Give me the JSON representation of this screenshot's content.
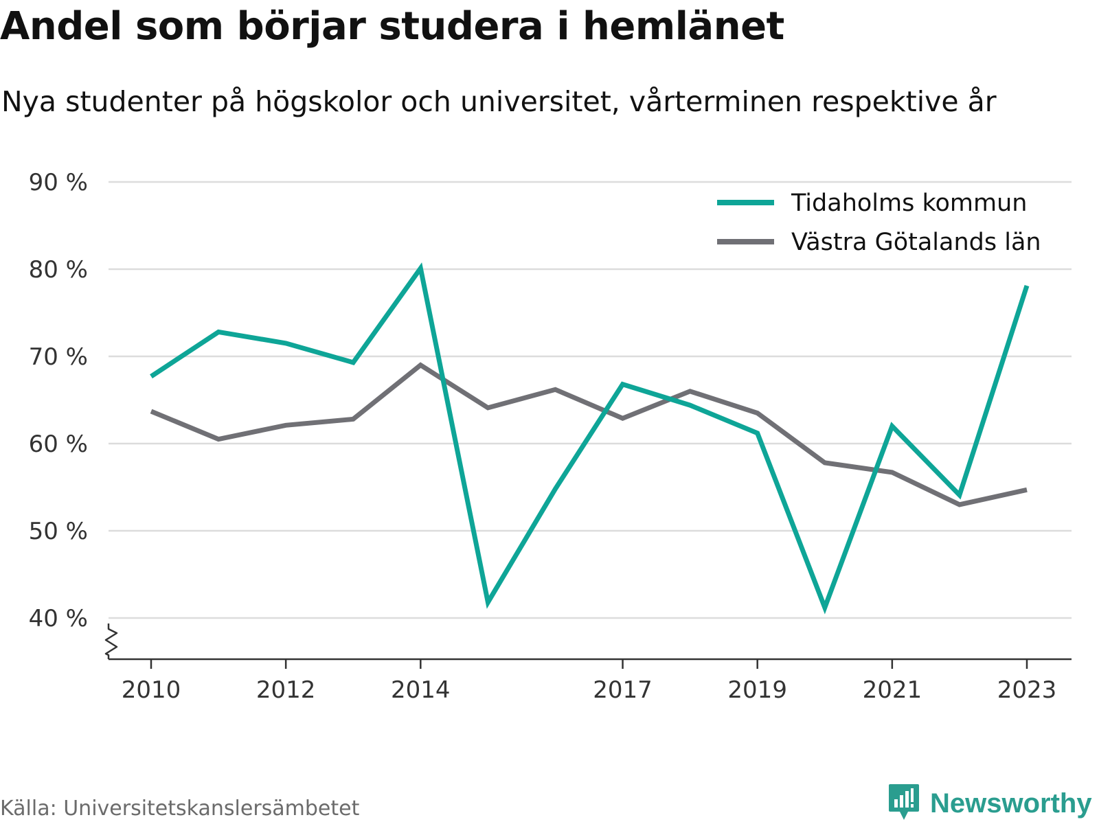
{
  "chart_data": {
    "type": "line",
    "title": "Andel som börjar studera i hemlänet",
    "subtitle": "Nya studenter på högskolor och universitet, vårterminen respektive år",
    "x": [
      2010,
      2011,
      2012,
      2013,
      2014,
      2015,
      2016,
      2017,
      2018,
      2019,
      2020,
      2021,
      2022,
      2023
    ],
    "x_ticks": [
      "2010",
      "2012",
      "2014",
      "2017",
      "2019",
      "2021",
      "2023"
    ],
    "y_ticks": [
      "40 %",
      "50 %",
      "60 %",
      "70 %",
      "80 %",
      "90 %"
    ],
    "ylim": [
      35,
      90
    ],
    "ylabel_unit": "%",
    "grid": true,
    "legend_position": "top-right",
    "series": [
      {
        "name": "Tidaholms kommun",
        "color": "#0ea597",
        "values": [
          67.7,
          72.8,
          71.5,
          69.3,
          80.1,
          41.8,
          54.8,
          66.8,
          64.4,
          61.2,
          41.2,
          62.0,
          54.1,
          78.1
        ]
      },
      {
        "name": "Västra Götalands län",
        "color": "#707075",
        "values": [
          63.7,
          60.5,
          62.1,
          62.8,
          69.0,
          64.1,
          66.2,
          62.9,
          66.0,
          63.5,
          57.8,
          56.7,
          53.0,
          54.7
        ]
      }
    ]
  },
  "source": "Källa: Universitetskanslersämbetet",
  "brand": "Newsworthy"
}
